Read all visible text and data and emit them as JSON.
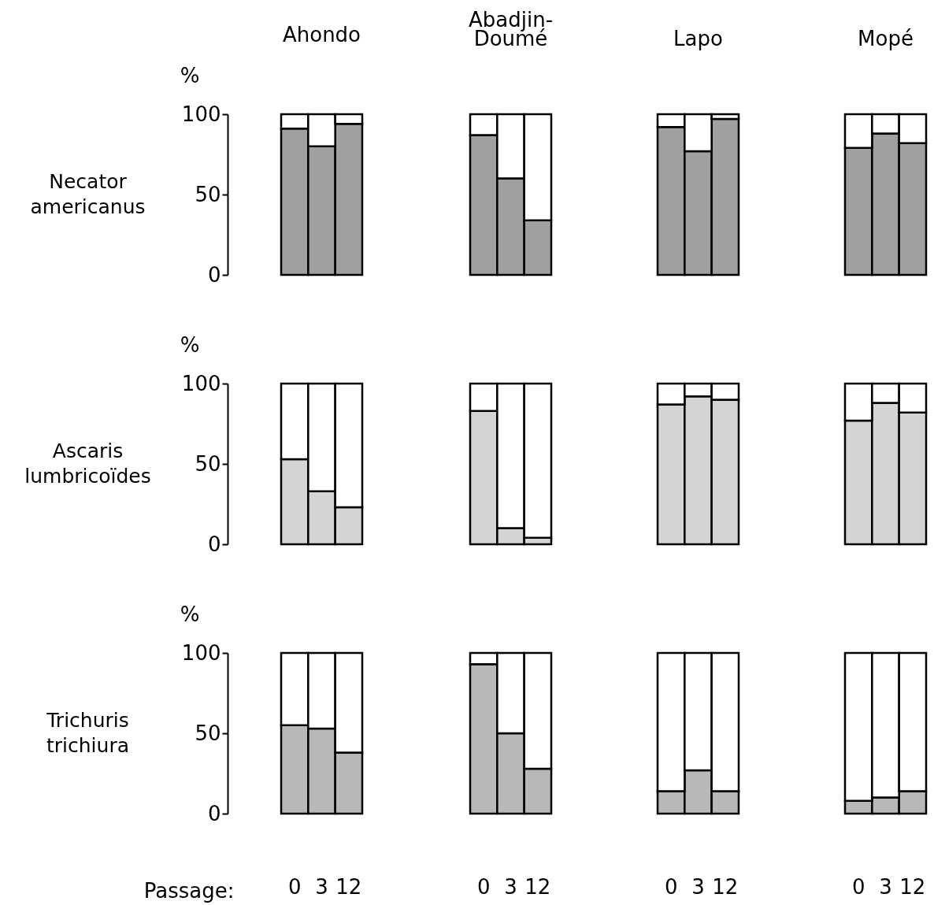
{
  "chart_data": [
    {
      "type": "bar",
      "title": "Ahondo",
      "ylabel": "Necator\namericanus",
      "annotations": [
        "%"
      ],
      "categories": [
        "0",
        "3",
        "12"
      ],
      "stacked": true,
      "ylim": [
        0,
        100
      ],
      "yticks": [
        0,
        50,
        100
      ],
      "tick_labels": "y",
      "series": [
        {
          "color": "#a0a0a0",
          "values": [
            91,
            80,
            94
          ]
        },
        {
          "color": "#ffffff",
          "values": [
            9,
            20,
            6
          ]
        }
      ]
    },
    {
      "type": "bar",
      "title": "Abadjin-\nDoumé",
      "categories": [
        "0",
        "3",
        "12"
      ],
      "stacked": true,
      "ylim": [
        0,
        100
      ],
      "tick_labels": false,
      "series": [
        {
          "color": "#a0a0a0",
          "values": [
            87,
            60,
            34
          ]
        },
        {
          "color": "#ffffff",
          "values": [
            13,
            40,
            66
          ]
        }
      ]
    },
    {
      "type": "bar",
      "title": "Lapo",
      "categories": [
        "0",
        "3",
        "12"
      ],
      "stacked": true,
      "ylim": [
        0,
        100
      ],
      "tick_labels": false,
      "series": [
        {
          "color": "#a0a0a0",
          "values": [
            92,
            77,
            97
          ]
        },
        {
          "color": "#ffffff",
          "values": [
            8,
            23,
            3
          ]
        }
      ]
    },
    {
      "type": "bar",
      "title": "Mopé",
      "categories": [
        "0",
        "3",
        "12"
      ],
      "stacked": true,
      "ylim": [
        0,
        100
      ],
      "tick_labels": false,
      "series": [
        {
          "color": "#a0a0a0",
          "values": [
            79,
            88,
            82
          ]
        },
        {
          "color": "#ffffff",
          "values": [
            21,
            12,
            18
          ]
        }
      ]
    },
    {
      "type": "bar",
      "ylabel": "Ascaris\nlumbricoïdes",
      "annotations": [
        "%"
      ],
      "categories": [
        "0",
        "3",
        "12"
      ],
      "stacked": true,
      "ylim": [
        0,
        100
      ],
      "yticks": [
        0,
        50,
        100
      ],
      "tick_labels": "y",
      "series": [
        {
          "color": "#d4d4d4",
          "values": [
            53,
            33,
            23
          ]
        },
        {
          "color": "#ffffff",
          "values": [
            47,
            67,
            77
          ]
        }
      ]
    },
    {
      "type": "bar",
      "categories": [
        "0",
        "3",
        "12"
      ],
      "stacked": true,
      "ylim": [
        0,
        100
      ],
      "tick_labels": false,
      "series": [
        {
          "color": "#d4d4d4",
          "values": [
            83,
            10,
            4
          ]
        },
        {
          "color": "#ffffff",
          "values": [
            17,
            90,
            96
          ]
        }
      ]
    },
    {
      "type": "bar",
      "categories": [
        "0",
        "3",
        "12"
      ],
      "stacked": true,
      "ylim": [
        0,
        100
      ],
      "tick_labels": false,
      "series": [
        {
          "color": "#d4d4d4",
          "values": [
            87,
            92,
            90
          ]
        },
        {
          "color": "#ffffff",
          "values": [
            13,
            8,
            10
          ]
        }
      ]
    },
    {
      "type": "bar",
      "categories": [
        "0",
        "3",
        "12"
      ],
      "stacked": true,
      "ylim": [
        0,
        100
      ],
      "tick_labels": false,
      "series": [
        {
          "color": "#d4d4d4",
          "values": [
            77,
            88,
            82
          ]
        },
        {
          "color": "#ffffff",
          "values": [
            23,
            12,
            18
          ]
        }
      ]
    },
    {
      "type": "bar",
      "ylabel": "Trichuris\ntrichiura",
      "xlabel": "Passage:",
      "annotations": [
        "%"
      ],
      "categories": [
        "0",
        "3",
        "12"
      ],
      "stacked": true,
      "ylim": [
        0,
        100
      ],
      "yticks": [
        0,
        50,
        100
      ],
      "series": [
        {
          "color": "#b8b8b8",
          "values": [
            55,
            53,
            38
          ]
        },
        {
          "color": "#ffffff",
          "values": [
            45,
            47,
            62
          ]
        }
      ]
    },
    {
      "type": "bar",
      "categories": [
        "0",
        "3",
        "12"
      ],
      "stacked": true,
      "ylim": [
        0,
        100
      ],
      "tick_labels": "x",
      "series": [
        {
          "color": "#b8b8b8",
          "values": [
            93,
            50,
            28
          ]
        },
        {
          "color": "#ffffff",
          "values": [
            7,
            50,
            72
          ]
        }
      ]
    },
    {
      "type": "bar",
      "categories": [
        "0",
        "3",
        "12"
      ],
      "stacked": true,
      "ylim": [
        0,
        100
      ],
      "tick_labels": "x",
      "series": [
        {
          "color": "#b8b8b8",
          "values": [
            14,
            27,
            14
          ]
        },
        {
          "color": "#ffffff",
          "values": [
            86,
            73,
            86
          ]
        }
      ]
    },
    {
      "type": "bar",
      "categories": [
        "0",
        "3",
        "12"
      ],
      "stacked": true,
      "ylim": [
        0,
        100
      ],
      "tick_labels": "x",
      "series": [
        {
          "color": "#b8b8b8",
          "values": [
            8,
            10,
            14
          ]
        },
        {
          "color": "#ffffff",
          "values": [
            92,
            90,
            86
          ]
        }
      ]
    }
  ]
}
